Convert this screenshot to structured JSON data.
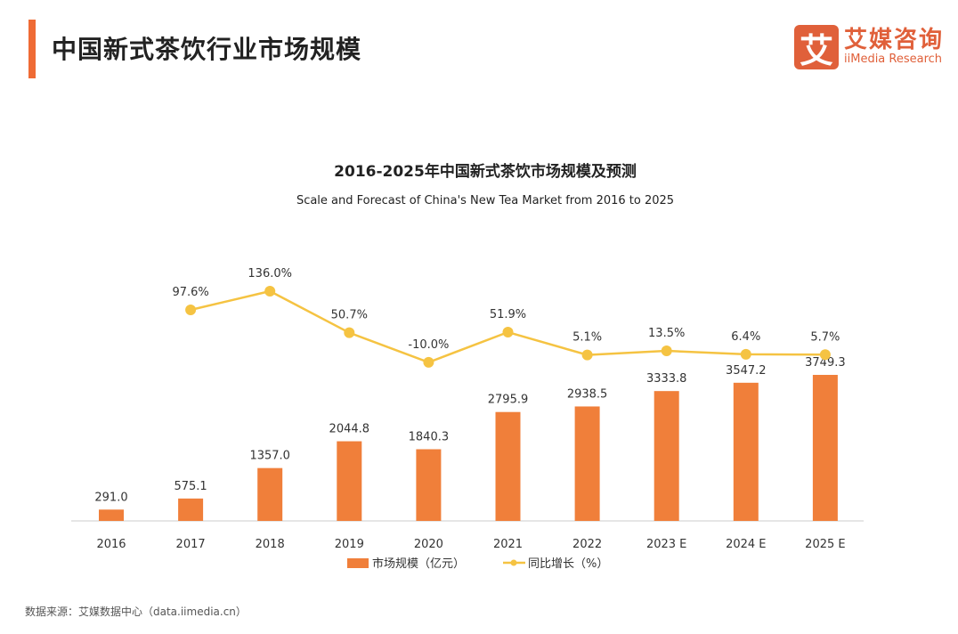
{
  "header": {
    "title": "中国新式茶饮行业市场规模"
  },
  "logo": {
    "mark": "艾",
    "name_cn": "艾媒咨询",
    "name_en": "iiMedia Research"
  },
  "source": "数据来源：艾媒数据中心（data.iimedia.cn）",
  "chart_data": {
    "type": "bar+line",
    "title": "2016-2025年中国新式茶饮市场规模及预测",
    "subtitle": "Scale and Forecast of China's New Tea Market from 2016 to 2025",
    "categories": [
      "2016",
      "2017",
      "2018",
      "2019",
      "2020",
      "2021",
      "2022",
      "2023 E",
      "2024 E",
      "2025 E"
    ],
    "series": [
      {
        "name": "市场规模（亿元）",
        "type": "bar",
        "color": "#f07f3a",
        "values": [
          291.0,
          575.1,
          1357.0,
          2044.8,
          1840.3,
          2795.9,
          2938.5,
          3333.8,
          3547.2,
          3749.3
        ],
        "labels": [
          "291.0",
          "575.1",
          "1357.0",
          "2044.8",
          "1840.3",
          "2795.9",
          "2938.5",
          "3333.8",
          "3547.2",
          "3749.3"
        ]
      },
      {
        "name": "同比增长（%）",
        "type": "line",
        "color": "#f5c342",
        "values": [
          null,
          97.6,
          136.0,
          50.7,
          -10.0,
          51.9,
          5.1,
          13.5,
          6.4,
          5.7
        ],
        "labels": [
          null,
          "97.6%",
          "136.0%",
          "50.7%",
          "-10.0%",
          "51.9%",
          "5.1%",
          "13.5%",
          "6.4%",
          "5.7%"
        ]
      }
    ],
    "legend": "bottom",
    "grid": false
  }
}
